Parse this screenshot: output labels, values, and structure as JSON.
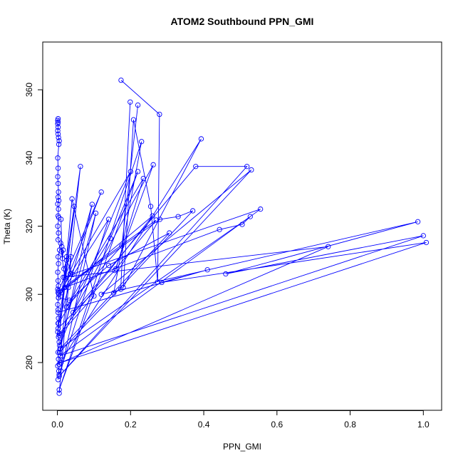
{
  "chart_data": {
    "type": "line",
    "title": "ATOM2 Southbound PPN_GMI",
    "xlabel": "PPN_GMI",
    "ylabel": "Theta (K)",
    "xlim": [
      -0.04,
      1.05
    ],
    "ylim": [
      266,
      374
    ],
    "x_ticks": [
      0.0,
      0.2,
      0.4,
      0.6,
      0.8,
      1.0
    ],
    "x_tick_labels": [
      "0.0",
      "0.2",
      "0.4",
      "0.6",
      "0.8",
      "1.0"
    ],
    "y_ticks": [
      280,
      300,
      320,
      340,
      360
    ],
    "y_tick_labels": [
      "280",
      "300",
      "320",
      "340",
      "360"
    ],
    "grid": false,
    "legend": "none",
    "series_color": "#0000ff",
    "series": [
      {
        "points": [
          [
            0.174,
            362.8
          ],
          [
            0.279,
            352.8
          ],
          [
            0.274,
            303.6
          ],
          [
            0.255,
            325.8
          ],
          [
            0.208,
            351.2
          ],
          [
            0.18,
            302.0
          ],
          [
            0.393,
            345.6
          ],
          [
            0.005,
            279.5
          ],
          [
            0.063,
            337.5
          ],
          [
            0.002,
            290.0
          ],
          [
            0.157,
            307.0
          ],
          [
            0.262,
            338.0
          ],
          [
            0.043,
            294.7
          ],
          [
            0.378,
            337.5
          ],
          [
            0.518,
            337.5
          ],
          [
            0.005,
            276.0
          ],
          [
            0.53,
            336.5
          ],
          [
            0.12,
            300.0
          ],
          [
            0.985,
            321.3
          ],
          [
            0.46,
            306.0
          ],
          [
            1.0,
            317.2
          ],
          [
            0.008,
            282.0
          ],
          [
            0.555,
            325.0
          ],
          [
            0.016,
            305.0
          ],
          [
            0.74,
            314.0
          ],
          [
            0.01,
            280.0
          ],
          [
            1.008,
            315.2
          ],
          [
            0.285,
            303.5
          ],
          [
            0.41,
            307.2
          ],
          [
            0.002,
            294.7
          ]
        ]
      },
      {
        "points": [
          [
            0.199,
            356.4
          ],
          [
            0.173,
            301.5
          ],
          [
            0.154,
            300.4
          ],
          [
            0.23,
            344.8
          ],
          [
            0.005,
            272.0
          ],
          [
            0.22,
            336.0
          ],
          [
            0.145,
            316.4
          ],
          [
            0.003,
            291.5
          ],
          [
            0.095,
            326.4
          ],
          [
            0.006,
            283.0
          ],
          [
            0.37,
            324.5
          ],
          [
            0.33,
            322.8
          ],
          [
            0.28,
            322.0
          ],
          [
            0.02,
            302.0
          ],
          [
            0.443,
            319.0
          ],
          [
            0.505,
            320.5
          ],
          [
            0.527,
            322.8
          ],
          [
            0.007,
            284.0
          ],
          [
            0.306,
            318.0
          ],
          [
            0.14,
            308.5
          ],
          [
            0.033,
            298.3
          ],
          [
            0.003,
            299.0
          ],
          [
            0.14,
            322.0
          ],
          [
            0.005,
            276.5
          ]
        ]
      },
      {
        "points": [
          [
            0.22,
            355.5
          ],
          [
            0.176,
            314.2
          ],
          [
            0.025,
            296.3
          ],
          [
            0.235,
            334.0
          ],
          [
            0.16,
            307.5
          ],
          [
            0.27,
            321.8
          ],
          [
            0.003,
            301.0
          ],
          [
            0.12,
            330.0
          ],
          [
            0.012,
            300.5
          ],
          [
            0.046,
            325.8
          ],
          [
            0.005,
            288.0
          ],
          [
            0.1,
            299.5
          ],
          [
            0.04,
            328.0
          ],
          [
            0.006,
            288.5
          ],
          [
            0.26,
            323.0
          ],
          [
            0.004,
            300.0
          ],
          [
            0.2,
            336.0
          ],
          [
            0.006,
            285.0
          ],
          [
            0.105,
            323.8
          ],
          [
            0.01,
            277.5
          ],
          [
            0.03,
            302.0
          ],
          [
            0.005,
            271.0
          ]
        ]
      },
      {
        "points": [
          [
            0.002,
            351.5
          ],
          [
            0.001,
            351.0
          ],
          [
            0.002,
            350.5
          ],
          [
            0.001,
            350.0
          ],
          [
            0.002,
            349.0
          ],
          [
            0.001,
            348.0
          ],
          [
            0.002,
            347.0
          ],
          [
            0.003,
            346.0
          ],
          [
            0.005,
            345.0
          ],
          [
            0.004,
            344.0
          ],
          [
            0.001,
            340.0
          ],
          [
            0.002,
            337.0
          ],
          [
            0.001,
            334.5
          ],
          [
            0.002,
            332.5
          ],
          [
            0.003,
            330.0
          ],
          [
            0.002,
            328.5
          ],
          [
            0.004,
            327.5
          ],
          [
            0.001,
            326.5
          ],
          [
            0.003,
            325.0
          ],
          [
            0.002,
            323.0
          ],
          [
            0.004,
            322.5
          ],
          [
            0.001,
            320.0
          ],
          [
            0.003,
            318.0
          ],
          [
            0.002,
            316.0
          ],
          [
            0.009,
            315.0
          ],
          [
            0.006,
            313.0
          ],
          [
            0.002,
            311.0
          ],
          [
            0.003,
            309.0
          ],
          [
            0.001,
            306.5
          ],
          [
            0.002,
            304.0
          ],
          [
            0.003,
            302.5
          ],
          [
            0.001,
            301.5
          ],
          [
            0.002,
            300.5
          ],
          [
            0.003,
            299.0
          ],
          [
            0.001,
            297.0
          ],
          [
            0.002,
            295.5
          ],
          [
            0.003,
            293.0
          ],
          [
            0.002,
            291.5
          ],
          [
            0.001,
            289.0
          ],
          [
            0.003,
            287.5
          ],
          [
            0.005,
            286.0
          ],
          [
            0.002,
            283.0
          ],
          [
            0.003,
            281.0
          ],
          [
            0.001,
            279.0
          ],
          [
            0.004,
            277.5
          ],
          [
            0.002,
            275.0
          ]
        ]
      },
      {
        "points": [
          [
            0.01,
            322.0
          ],
          [
            0.012,
            314.0
          ],
          [
            0.014,
            310.5
          ],
          [
            0.016,
            313.0
          ],
          [
            0.011,
            312.5
          ],
          [
            0.02,
            305.0
          ],
          [
            0.025,
            311.0
          ],
          [
            0.037,
            311.0
          ],
          [
            0.035,
            306.0
          ],
          [
            0.042,
            305.8
          ],
          [
            0.025,
            310.0
          ],
          [
            0.018,
            307.5
          ]
        ]
      }
    ]
  }
}
